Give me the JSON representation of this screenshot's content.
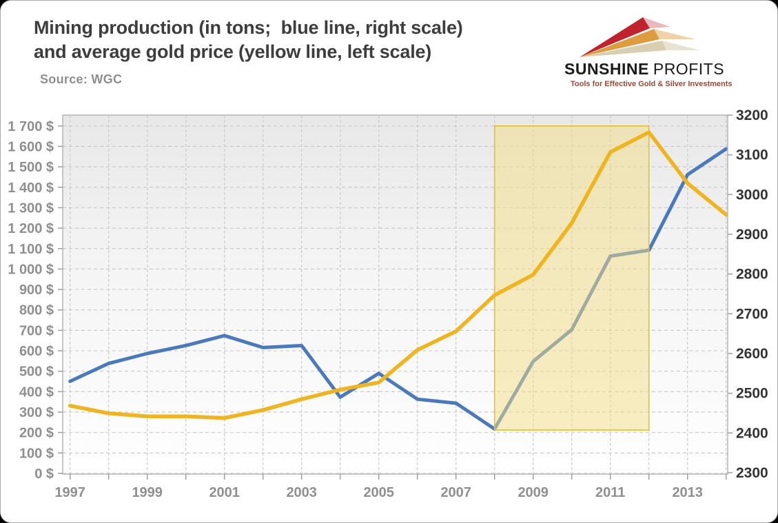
{
  "header": {
    "title_line1": "Mining production (in tons;  blue line, right scale)",
    "title_line2": "and average gold price (yellow line, left scale)",
    "source": "Source: WGC"
  },
  "logo": {
    "brand_bold": "SUNSHINE",
    "brand_light": "PROFITS",
    "tagline": "Tools for Effective Gold & Silver Investments",
    "colors": {
      "red": "#C1232E",
      "gold": "#DD9C3D",
      "beige": "#D8CFB2",
      "text": "#1A1A1A",
      "tagline": "#9A4732"
    }
  },
  "chart_data": {
    "type": "line",
    "title": "Mining production (in tons; blue line, right scale) and average gold price (yellow line, left scale)",
    "x": [
      1997,
      1998,
      1999,
      2000,
      2001,
      2002,
      2003,
      2004,
      2005,
      2006,
      2007,
      2008,
      2009,
      2010,
      2011,
      2012,
      2013,
      2014
    ],
    "x_tick_labels": [
      "1997",
      "1999",
      "2001",
      "2003",
      "2005",
      "2007",
      "2009",
      "2011",
      "2013"
    ],
    "series": [
      {
        "name": "Mining production (tons)",
        "axis": "right",
        "color": "#4A7ABD",
        "values": [
          2530,
          2575,
          2600,
          2620,
          2645,
          2615,
          2620,
          2490,
          2550,
          2485,
          2475,
          2410,
          2580,
          2660,
          2845,
          2860,
          3050,
          3115
        ]
      },
      {
        "name": "Average gold price ($)",
        "axis": "left",
        "color": "#F0B41E",
        "values": [
          331,
          294,
          279,
          279,
          271,
          310,
          363,
          410,
          445,
          604,
          695,
          872,
          972,
          1225,
          1572,
          1669,
          1420,
          1266
        ]
      }
    ],
    "left_axis": {
      "min": 0,
      "max": 1700,
      "step": 100,
      "labels": [
        "0 $",
        "100 $",
        "200 $",
        "300 $",
        "400 $",
        "500 $",
        "600 $",
        "700 $",
        "800 $",
        "900 $",
        "1 000 $",
        "1 100 $",
        "1 200 $",
        "1 300 $",
        "1 400 $",
        "1 500 $",
        "1 600 $",
        "1 700 $"
      ]
    },
    "right_axis": {
      "min": 2300,
      "max": 3200,
      "step": 100,
      "labels": [
        "2300",
        "2400",
        "2500",
        "2600",
        "2700",
        "2800",
        "2900",
        "3000",
        "3100",
        "3200"
      ]
    },
    "highlight": {
      "from_year": 2008,
      "to_year": 2012,
      "top_value_left": 1700,
      "bottom_value_left": 212,
      "fill": "#F3DC85",
      "fill_opacity": 0.5,
      "border": "#E4BF2E"
    },
    "grid": true,
    "legend_position": "none"
  }
}
